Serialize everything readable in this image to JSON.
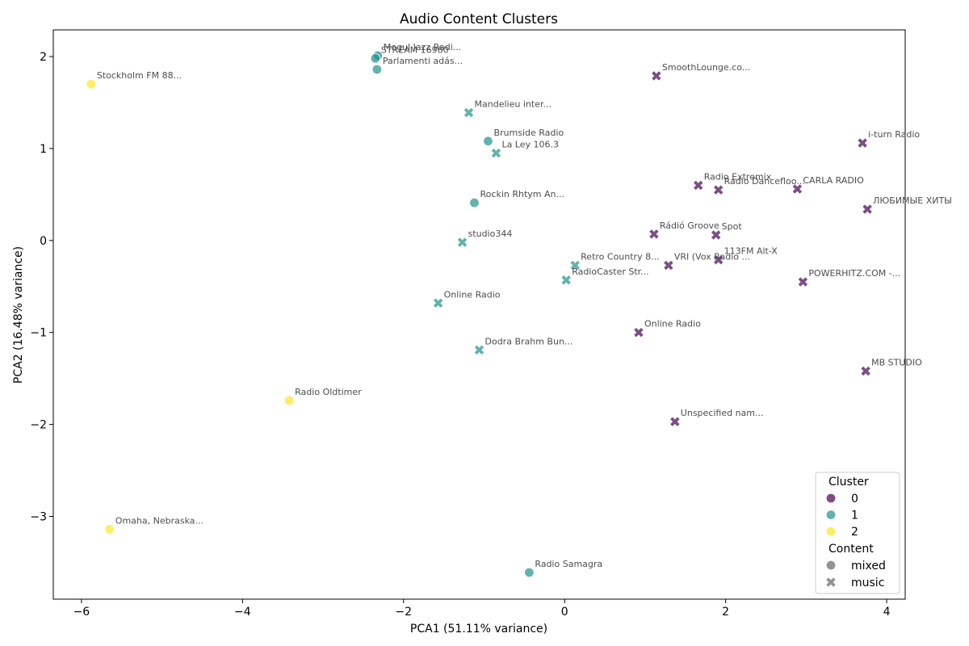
{
  "chart_data": {
    "type": "scatter",
    "title": "Audio Content Clusters",
    "xlabel": "PCA1 (51.11% variance)",
    "ylabel": "PCA2 (16.48% variance)",
    "xlim": [
      -6.35,
      4.23
    ],
    "ylim": [
      -3.9,
      2.29
    ],
    "xticks": [
      -6,
      -4,
      -2,
      0,
      2,
      4
    ],
    "yticks": [
      -3,
      -2,
      -1,
      0,
      1,
      2
    ],
    "tick_labels_x": [
      "−6",
      "−4",
      "−2",
      "0",
      "2",
      "4"
    ],
    "tick_labels_y": [
      "−3",
      "−2",
      "−1",
      "0",
      "1",
      "2"
    ],
    "grid": false,
    "legend_position": "bottom-right",
    "legend": {
      "hue_title": "Cluster",
      "hue_entries": [
        "0",
        "1",
        "2"
      ],
      "style_title": "Content",
      "style_entries": [
        "mixed",
        "music"
      ]
    },
    "cluster_colors": {
      "0": "#440154",
      "1": "#21918c",
      "2": "#fde725"
    },
    "points": [
      {
        "label": "Stockholm FM 88...",
        "x": -5.88,
        "y": 1.7,
        "cluster": "2",
        "content": "mixed"
      },
      {
        "label": "Omaha, Nebraska...",
        "x": -5.65,
        "y": -3.14,
        "cluster": "2",
        "content": "mixed"
      },
      {
        "label": "Radio Oldtimer",
        "x": -3.42,
        "y": -1.74,
        "cluster": "2",
        "content": "mixed"
      },
      {
        "label": "Mogul Jazz Radi...",
        "x": -2.32,
        "y": 2.01,
        "cluster": "1",
        "content": "mixed"
      },
      {
        "label": "STREAM 16980",
        "x": -2.35,
        "y": 1.98,
        "cluster": "1",
        "content": "mixed"
      },
      {
        "label": "Parlamenti adás...",
        "x": -2.33,
        "y": 1.86,
        "cluster": "1",
        "content": "mixed"
      },
      {
        "label": "Mandelieu inter...",
        "x": -1.19,
        "y": 1.39,
        "cluster": "1",
        "content": "music"
      },
      {
        "label": "Brumside Radio",
        "x": -0.95,
        "y": 1.08,
        "cluster": "1",
        "content": "mixed"
      },
      {
        "label": "La Ley 106.3",
        "x": -0.85,
        "y": 0.95,
        "cluster": "1",
        "content": "music"
      },
      {
        "label": "Rockin Rhtym An...",
        "x": -1.12,
        "y": 0.41,
        "cluster": "1",
        "content": "mixed"
      },
      {
        "label": "studio344",
        "x": -1.27,
        "y": -0.02,
        "cluster": "1",
        "content": "music"
      },
      {
        "label": "Online Radio",
        "x": -1.57,
        "y": -0.68,
        "cluster": "1",
        "content": "music"
      },
      {
        "label": "Dodra Brahm Bun...",
        "x": -1.06,
        "y": -1.19,
        "cluster": "1",
        "content": "music"
      },
      {
        "label": "Retro Country 8...",
        "x": 0.13,
        "y": -0.27,
        "cluster": "1",
        "content": "music"
      },
      {
        "label": "RadioCaster Str...",
        "x": 0.02,
        "y": -0.43,
        "cluster": "1",
        "content": "music"
      },
      {
        "label": "Radio Samagra",
        "x": -0.44,
        "y": -3.61,
        "cluster": "1",
        "content": "mixed"
      },
      {
        "label": "SmoothLounge.co...",
        "x": 1.14,
        "y": 1.79,
        "cluster": "0",
        "content": "music"
      },
      {
        "label": "i-turn Radio",
        "x": 3.7,
        "y": 1.06,
        "cluster": "0",
        "content": "music"
      },
      {
        "label": "Radio Extremix",
        "x": 1.66,
        "y": 0.6,
        "cluster": "0",
        "content": "music"
      },
      {
        "label": "Radio Dancefloo...",
        "x": 1.91,
        "y": 0.55,
        "cluster": "0",
        "content": "music"
      },
      {
        "label": "CARLA RADIO",
        "x": 2.89,
        "y": 0.56,
        "cluster": "0",
        "content": "music"
      },
      {
        "label": "ЛЮБИМЫЕ ХИТЫ",
        "x": 3.76,
        "y": 0.34,
        "cluster": "0",
        "content": "music"
      },
      {
        "label": "Rádió Groove",
        "x": 1.11,
        "y": 0.07,
        "cluster": "0",
        "content": "music"
      },
      {
        "label": "Spot",
        "x": 1.88,
        "y": 0.06,
        "cluster": "0",
        "content": "music"
      },
      {
        "label": "113FM Alt-X",
        "x": 1.91,
        "y": -0.21,
        "cluster": "0",
        "content": "music"
      },
      {
        "label": "VRI (Vox Radio ...",
        "x": 1.29,
        "y": -0.27,
        "cluster": "0",
        "content": "music"
      },
      {
        "label": "POWERHITZ.COM -...",
        "x": 2.96,
        "y": -0.45,
        "cluster": "0",
        "content": "music"
      },
      {
        "label": "Online Radio",
        "x": 0.92,
        "y": -1.0,
        "cluster": "0",
        "content": "music"
      },
      {
        "label": "MB STUDIO",
        "x": 3.74,
        "y": -1.42,
        "cluster": "0",
        "content": "music"
      },
      {
        "label": "Unspecified nam...",
        "x": 1.37,
        "y": -1.97,
        "cluster": "0",
        "content": "music"
      }
    ]
  }
}
